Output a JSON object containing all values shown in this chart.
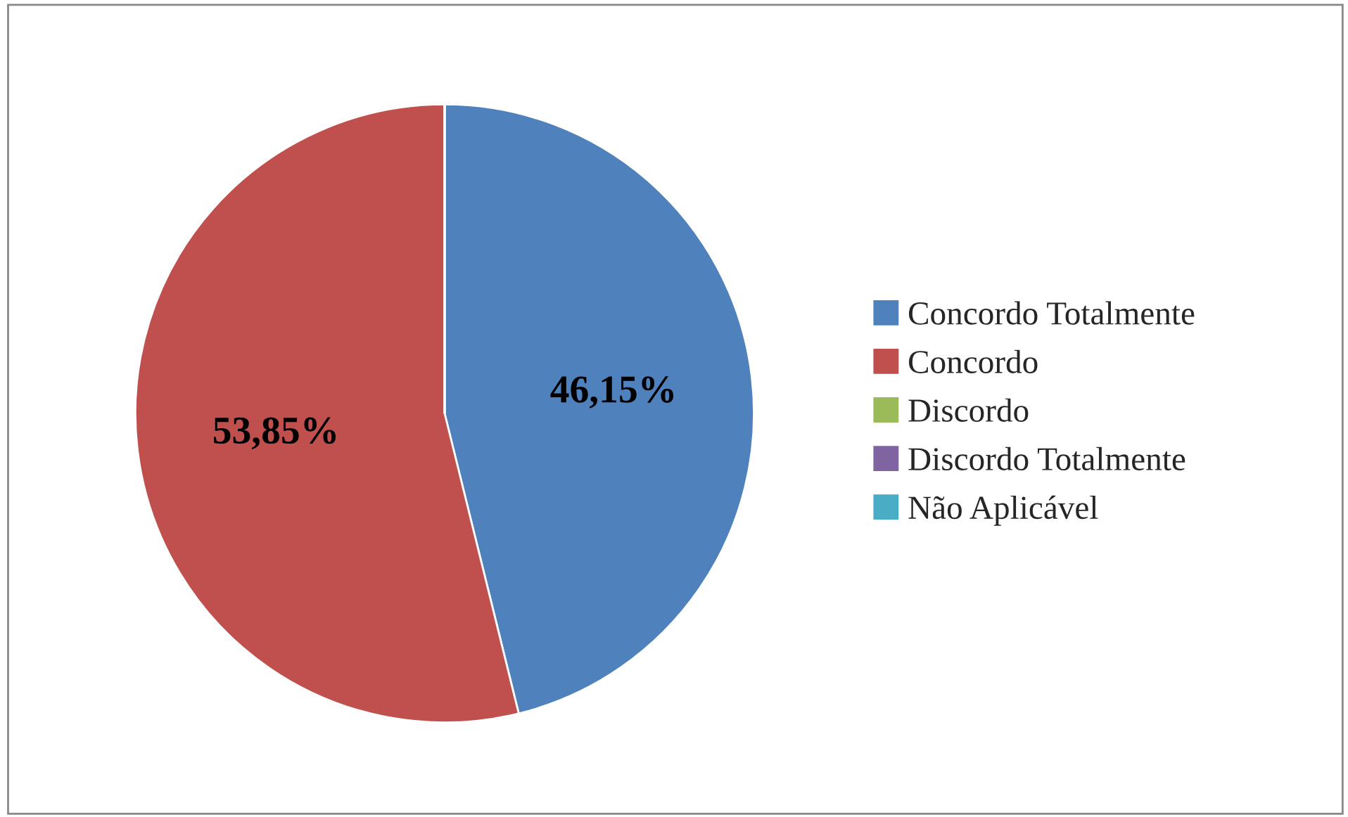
{
  "chart_data": {
    "type": "pie",
    "categories": [
      "Concordo Totalmente",
      "Concordo",
      "Discordo",
      "Discordo Totalmente",
      "Não Aplicável"
    ],
    "values": [
      46.15,
      53.85,
      0,
      0,
      0
    ],
    "value_labels": [
      "46,15%",
      "53,85%",
      null,
      null,
      null
    ],
    "colors": [
      "#4f81bd",
      "#c0504d",
      "#9bbb59",
      "#8064a2",
      "#4bacc6"
    ],
    "legend": "right"
  }
}
